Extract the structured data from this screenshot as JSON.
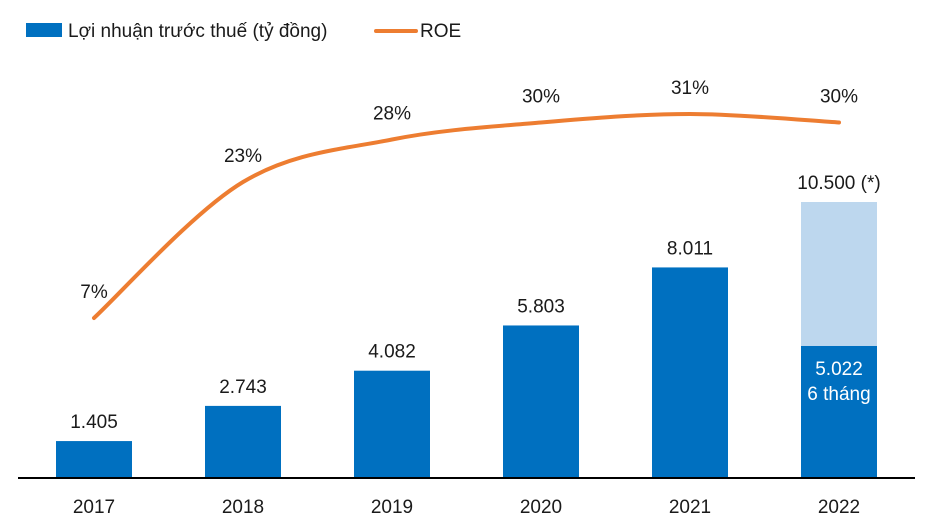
{
  "chart_data": {
    "type": "bar+line",
    "categories": [
      "2017",
      "2018",
      "2019",
      "2020",
      "2021",
      "2022"
    ],
    "legend": {
      "placement": "top-left",
      "items": [
        {
          "label": "Lợi nhuận trước thuế (tỷ đồng)",
          "kind": "bar"
        },
        {
          "label": "ROE",
          "kind": "line"
        }
      ]
    },
    "series": [
      {
        "name": "Lợi nhuận trước thuế (tỷ đồng)",
        "type": "bar",
        "values": [
          1405,
          2743,
          4082,
          5803,
          8011,
          10500
        ],
        "labels": [
          "1.405",
          "2.743",
          "4.082",
          "5.803",
          "8.011",
          "10.500 (*)"
        ]
      },
      {
        "name": "Lợi nhuận 6 tháng 2022",
        "type": "bar-overlay",
        "category": "2022",
        "value": 5022,
        "label_lines": [
          "5.022",
          "6 tháng"
        ]
      },
      {
        "name": "ROE",
        "type": "line",
        "unit": "%",
        "values": [
          7,
          23,
          28,
          30,
          31,
          30
        ],
        "labels": [
          "7%",
          "23%",
          "28%",
          "30%",
          "31%",
          "30%"
        ]
      }
    ],
    "bar_ylim": [
      0,
      10500
    ],
    "grid": false,
    "colors": {
      "bar": "#0070c0",
      "bar_target": "#bdd7ee",
      "line": "#ed7d31",
      "axis": "#000000"
    }
  }
}
